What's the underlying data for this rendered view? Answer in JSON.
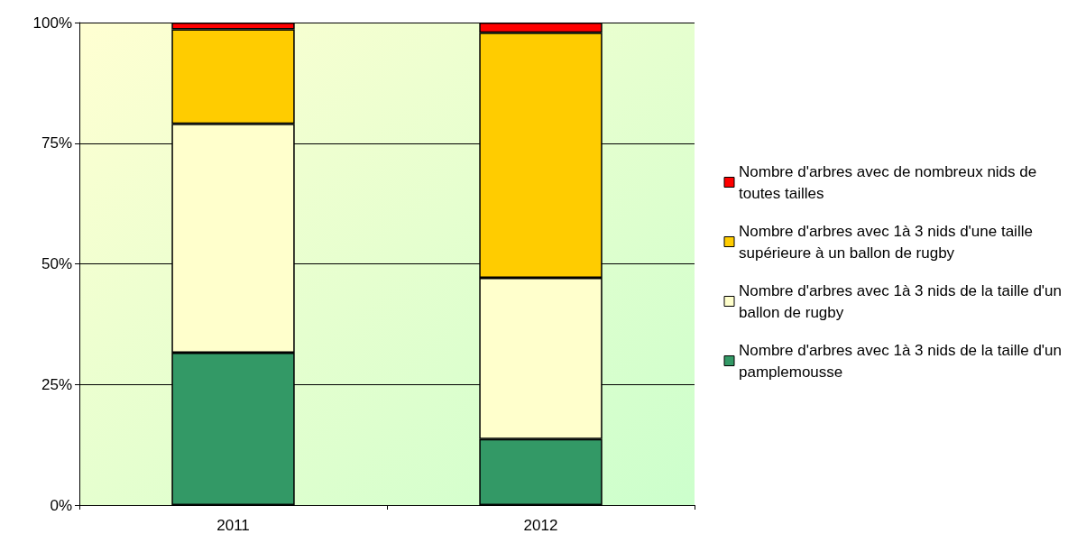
{
  "chart_data": {
    "type": "bar",
    "stacked": true,
    "categories": [
      "2011",
      "2012"
    ],
    "series": [
      {
        "name": "Nombre d'arbres avec 1à 3 nids de la taille d'un pamplemousse",
        "color": "#339966",
        "values": [
          31.6,
          13.7
        ]
      },
      {
        "name": "Nombre d'arbres avec 1à 3 nids de la taille d'un ballon de rugby",
        "color": "#ffffcc",
        "values": [
          47.4,
          33.4
        ]
      },
      {
        "name": "Nombre d'arbres avec 1à 3 nids d'une taille supérieure à un ballon de rugby",
        "color": "#ffcc00",
        "values": [
          19.6,
          50.8
        ]
      },
      {
        "name": "Nombre d'arbres avec de nombreux nids de toutes tailles",
        "color": "#ff0000",
        "values": [
          1.4,
          2.1
        ]
      }
    ],
    "ylim": [
      0,
      100
    ],
    "yticks": [
      {
        "value": 0,
        "label": "0%"
      },
      {
        "value": 25,
        "label": "25%"
      },
      {
        "value": 50,
        "label": "50%"
      },
      {
        "value": 75,
        "label": "75%"
      },
      {
        "value": 100,
        "label": "100%"
      }
    ],
    "grid": "y",
    "legend": "right"
  }
}
